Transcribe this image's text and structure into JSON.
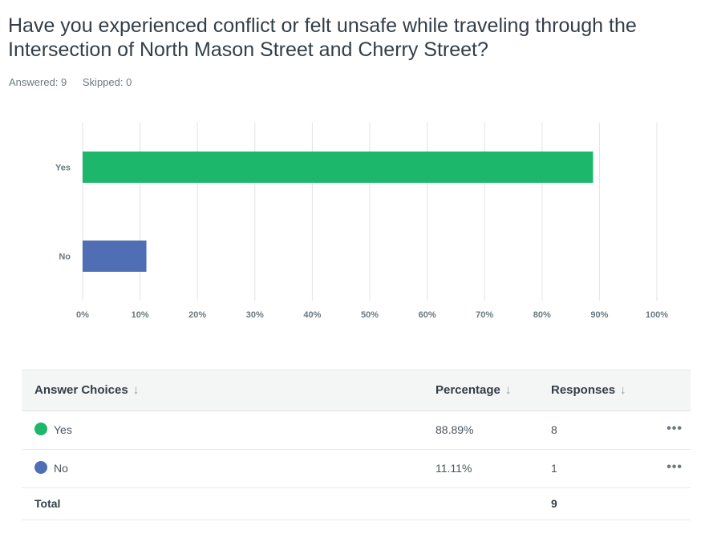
{
  "question": {
    "title": "Have you experienced conflict or felt unsafe while traveling through the Intersection of North Mason Street and Cherry Street?",
    "answered_label": "Answered: 9",
    "skipped_label": "Skipped: 0"
  },
  "chart_data": {
    "type": "bar",
    "orientation": "horizontal",
    "categories": [
      "Yes",
      "No"
    ],
    "values": [
      88.89,
      11.11
    ],
    "colors": [
      "#1cb76a",
      "#4f6eb3"
    ],
    "xlim": [
      0,
      100
    ],
    "x_ticks": [
      "0%",
      "10%",
      "20%",
      "30%",
      "40%",
      "50%",
      "60%",
      "70%",
      "80%",
      "90%",
      "100%"
    ],
    "grid": true
  },
  "table": {
    "headers": {
      "choices": "Answer Choices",
      "percentage": "Percentage",
      "responses": "Responses",
      "sort_icon": "arrow-down-icon",
      "sort_glyph": "↓"
    },
    "rows": [
      {
        "label": "Yes",
        "percentage": "88.89%",
        "responses": "8",
        "color": "#1cb76a",
        "more": "•••"
      },
      {
        "label": "No",
        "percentage": "11.11%",
        "responses": "1",
        "color": "#4f6eb3",
        "more": "•••"
      }
    ],
    "total": {
      "label": "Total",
      "responses": "9"
    }
  }
}
